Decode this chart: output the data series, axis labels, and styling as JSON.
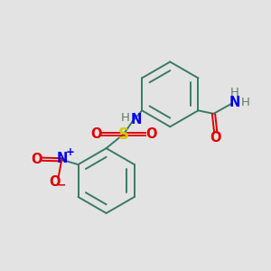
{
  "background_color": "#e3e3e3",
  "atom_colors": {
    "C": "#3a7a65",
    "H": "#607a6a",
    "N": "#0000ee",
    "O": "#dd0000",
    "S": "#cccc00",
    "NH": "#0000ee"
  },
  "figsize": [
    3.0,
    3.0
  ],
  "dpi": 100
}
